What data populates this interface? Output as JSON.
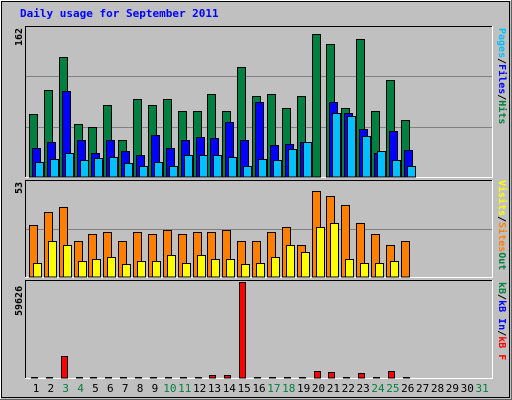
{
  "chart_data": {
    "type": "bar",
    "title": "Daily usage for September 2011",
    "categories": [
      "1",
      "2",
      "3",
      "4",
      "5",
      "6",
      "7",
      "8",
      "9",
      "10",
      "11",
      "12",
      "13",
      "14",
      "15",
      "16",
      "17",
      "18",
      "19",
      "20",
      "21",
      "22",
      "23",
      "24",
      "25",
      "26",
      "27",
      "28",
      "29",
      "30",
      "31"
    ],
    "weekend_days": [
      "3",
      "4",
      "10",
      "11",
      "17",
      "18",
      "24",
      "25",
      "31"
    ],
    "colors": {
      "hits": "#008040",
      "files": "#0000ff",
      "pages": "#00c0ff",
      "visits": "#ffff00",
      "sites": "#ff8000",
      "kb_f": "#ff0000",
      "kb_in": "#0000ff",
      "kb_out": "#008040",
      "weekend_label": "#008040",
      "weekday_label": "#000000",
      "plot_bg": "#c0c0c0",
      "grid": "#808080"
    },
    "panels": [
      {
        "name": "hits-files-pages",
        "max_label": "162",
        "ymax": 162,
        "grid_fractions": [
          0.333,
          0.667
        ],
        "series": [
          {
            "name": "Hits",
            "color": "#008040",
            "values": [
              68,
              95,
              130,
              58,
              54,
              78,
              40,
              85,
              78,
              85,
              72,
              72,
              90,
              72,
              120,
              88,
              90,
              75,
              88,
              156,
              145,
              75,
              150,
              72,
              105,
              62,
              0,
              0,
              0,
              0,
              0
            ]
          },
          {
            "name": "Files",
            "color": "#0000ff",
            "values": [
              32,
              38,
              94,
              40,
              26,
              40,
              28,
              24,
              46,
              32,
              40,
              44,
              42,
              60,
              40,
              82,
              35,
              36,
              38,
              0,
              82,
              70,
              52,
              26,
              50,
              29,
              0,
              0,
              0,
              0,
              0
            ]
          },
          {
            "name": "Pages",
            "color": "#00c0ff",
            "values": [
              16,
              20,
              26,
              18,
              21,
              22,
              15,
              12,
              16,
              12,
              24,
              24,
              24,
              22,
              12,
              20,
              18,
              30,
              38,
              0,
              70,
              66,
              45,
              28,
              18,
              12,
              0,
              0,
              0,
              0,
              0
            ]
          }
        ],
        "right_labels": [
          {
            "text": "Pages",
            "color": "#00c0ff"
          },
          {
            "text": "/",
            "color": "#000000"
          },
          {
            "text": "Files",
            "color": "#0000ff"
          },
          {
            "text": "/",
            "color": "#000000"
          },
          {
            "text": "Hits",
            "color": "#008040"
          }
        ]
      },
      {
        "name": "visits-sites",
        "max_label": "53",
        "ymax": 53,
        "grid_fractions": [
          0.5
        ],
        "series": [
          {
            "name": "Sites",
            "color": "#ff8000",
            "values": [
              29,
              36,
              39,
              20,
              24,
              25,
              20,
              25,
              24,
              26,
              24,
              25,
              25,
              26,
              20,
              20,
              25,
              28,
              18,
              48,
              45,
              40,
              30,
              24,
              18,
              20,
              0,
              0,
              0,
              0,
              0
            ]
          },
          {
            "name": "Visits",
            "color": "#ffff00",
            "values": [
              8,
              20,
              18,
              9,
              10,
              11,
              7,
              9,
              9,
              12,
              8,
              12,
              10,
              10,
              7,
              8,
              11,
              18,
              14,
              28,
              30,
              10,
              8,
              8,
              9,
              0,
              0,
              0,
              0,
              0,
              0
            ]
          }
        ],
        "right_labels": [
          {
            "text": "Visits",
            "color": "#ffff00"
          },
          {
            "text": "/",
            "color": "#000000"
          },
          {
            "text": "Sites",
            "color": "#ff8000"
          },
          {
            "text": "Out",
            "color": "#008040"
          }
        ]
      },
      {
        "name": "kbytes",
        "max_label": "59626",
        "ymax": 59626,
        "grid_fractions": [],
        "series": [
          {
            "name": "KB F",
            "color": "#ff0000",
            "values": [
              800,
              900,
              13500,
              900,
              900,
              900,
              900,
              900,
              900,
              900,
              900,
              900,
              1800,
              1800,
              59626,
              900,
              900,
              900,
              900,
              4500,
              3600,
              900,
              2800,
              900,
              4500,
              900,
              0,
              0,
              0,
              0,
              0
            ]
          }
        ],
        "right_labels": [
          {
            "text": "kB",
            "color": "#008040"
          },
          {
            "text": "/",
            "color": "#000000"
          },
          {
            "text": "kB In",
            "color": "#0000ff"
          },
          {
            "text": "/",
            "color": "#000000"
          },
          {
            "text": "kB F",
            "color": "#ff0000"
          }
        ]
      }
    ]
  }
}
